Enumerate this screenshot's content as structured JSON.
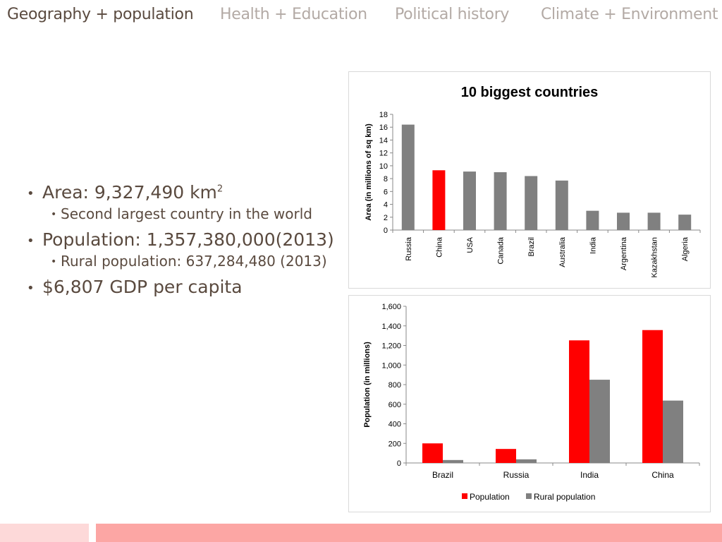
{
  "tabs": [
    {
      "label": "Geography + population",
      "active": true
    },
    {
      "label": "Health + Education",
      "active": false
    },
    {
      "label": "Political history",
      "active": false
    },
    {
      "label": "Climate + Environment",
      "active": false
    }
  ],
  "bullets": {
    "area_text": "Area: 9,327,490 km",
    "area_sup": "2",
    "area_sub": "Second largest country in the world",
    "population": "Population: 1,357,380,000(2013)",
    "rural": "Rural population: 637,284,480 (2013)",
    "gdp": "$6,807 GDP per capita"
  },
  "colors": {
    "highlight": "#ff0000",
    "gray": "#808080",
    "footer_light": "#fdd9d9",
    "footer_dark": "#fca6a4"
  },
  "chart_data": [
    {
      "type": "bar",
      "title": "10 biggest countries",
      "ylabel": "Area (in millions of sq km)",
      "xlabel": "",
      "categories": [
        "Russia",
        "China",
        "USA",
        "Canada",
        "Brazil",
        "Australia",
        "India",
        "Argentina",
        "Kazakhstan",
        "Algeria"
      ],
      "values": [
        16.4,
        9.3,
        9.1,
        9.0,
        8.4,
        7.7,
        3.0,
        2.7,
        2.7,
        2.4
      ],
      "highlight_category": "China",
      "ylim": [
        0,
        18
      ],
      "yticks": [
        0,
        2,
        4,
        6,
        8,
        10,
        12,
        14,
        16,
        18
      ],
      "grid": false,
      "legend": "none"
    },
    {
      "type": "bar",
      "title": "",
      "ylabel": "Population (in millions)",
      "xlabel": "",
      "categories": [
        "Brazil",
        "Russia",
        "India",
        "China"
      ],
      "series": [
        {
          "name": "Population",
          "values": [
            200,
            143,
            1252,
            1357
          ],
          "color": "#ff0000"
        },
        {
          "name": "Rural population",
          "values": [
            30,
            37,
            850,
            637
          ],
          "color": "#808080"
        }
      ],
      "ylim": [
        0,
        1600
      ],
      "yticks": [
        "0",
        "200",
        "400",
        "600",
        "800",
        "1,000",
        "1,200",
        "1,400",
        "1,600"
      ],
      "grid": false,
      "legend": "bottom"
    }
  ]
}
